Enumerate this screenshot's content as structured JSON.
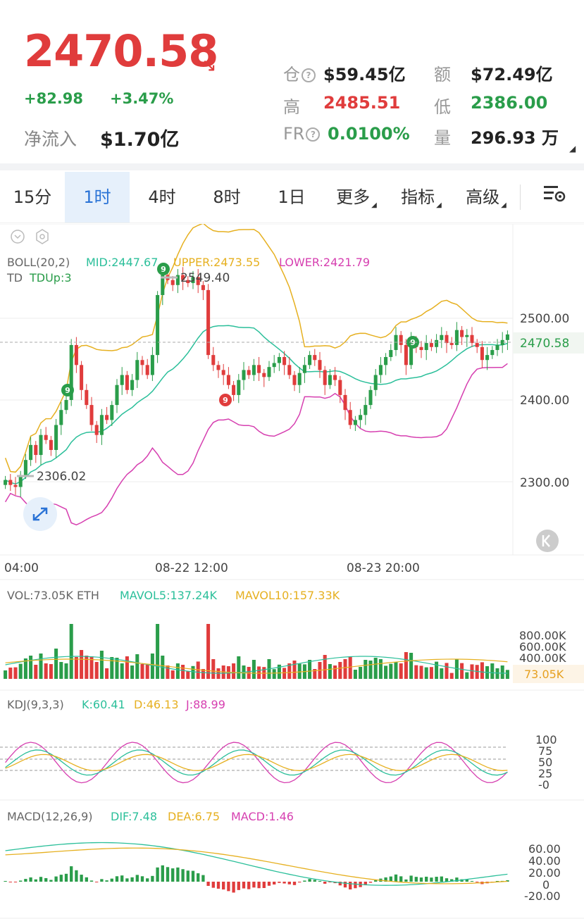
{
  "header": {
    "price": "2470.58",
    "change_abs": "+82.98",
    "change_pct": "+3.47%",
    "netflow_label": "净流入",
    "netflow_value": "$1.70亿",
    "stats": {
      "position_label": "仓",
      "position_value": "$59.45亿",
      "amount_label": "额",
      "amount_value": "$72.49亿",
      "high_label": "高",
      "high_value": "2485.51",
      "low_label": "低",
      "low_value": "2386.00",
      "fr_label": "FR",
      "fr_value": "0.0100%",
      "volume_label": "量",
      "volume_value": "296.93 万"
    }
  },
  "tabs": [
    {
      "label": "15分",
      "active": false
    },
    {
      "label": "1时",
      "active": true
    },
    {
      "label": "4时",
      "active": false
    },
    {
      "label": "8时",
      "active": false
    },
    {
      "label": "1日",
      "active": false
    },
    {
      "label": "更多",
      "active": false,
      "dropdown": true
    },
    {
      "label": "指标",
      "active": false,
      "dropdown": true
    },
    {
      "label": "高级",
      "active": false,
      "dropdown": true
    }
  ],
  "colors": {
    "up": "#2a9d4a",
    "down": "#e03c3c",
    "mid": "#2bbf9a",
    "upper": "#e6b020",
    "lower": "#d63fb0",
    "accent": "#2a73d6"
  },
  "main_chart": {
    "boll_label": "BOLL(20,2)",
    "mid_label": "MID:2447.67",
    "upper_label": "UPPER:2473.55",
    "lower_label": "LOWER:2421.79",
    "td_label": "TD",
    "td_value": "TDUp:3",
    "max_label": "2549.40",
    "min_label": "2306.02",
    "current_price_tag": "2470.58",
    "y_ticks": [
      "2500.00",
      "2400.00",
      "2300.00"
    ],
    "x_ticks": [
      "04:00",
      "08-22 12:00",
      "08-23 20:00"
    ],
    "td_markers": [
      "9",
      "9",
      "9",
      "9"
    ]
  },
  "vol_panel": {
    "vol_label": "VOL:73.05K ETH",
    "mavol5_label": "MAVOL5:137.24K",
    "mavol10_label": "MAVOL10:157.33K",
    "y_ticks": [
      "800.00K",
      "600.00K",
      "400.00K"
    ],
    "current_tag": "73.05K"
  },
  "kdj_panel": {
    "label": "KDJ(9,3,3)",
    "k_label": "K:60.41",
    "d_label": "D:46.13",
    "j_label": "J:88.99",
    "y_ticks": [
      "100",
      "75",
      "50",
      "25",
      "-0"
    ]
  },
  "macd_panel": {
    "label": "MACD(12,26,9)",
    "dif_label": "DIF:7.48",
    "dea_label": "DEA:6.75",
    "macd_label": "MACD:1.46",
    "y_ticks": [
      "60.00",
      "40.00",
      "20.00",
      "0",
      "-20.00"
    ]
  },
  "chart_data": {
    "type": "candlestick",
    "y_range": [
      2250,
      2560
    ],
    "closes": [
      2325,
      2320,
      2318,
      2330,
      2345,
      2360,
      2350,
      2370,
      2365,
      2355,
      2380,
      2395,
      2405,
      2460,
      2440,
      2415,
      2400,
      2380,
      2370,
      2390,
      2385,
      2400,
      2420,
      2430,
      2415,
      2425,
      2445,
      2440,
      2430,
      2450,
      2510,
      2530,
      2525,
      2520,
      2530,
      2525,
      2522,
      2528,
      2520,
      2515,
      2450,
      2440,
      2435,
      2430,
      2420,
      2410,
      2425,
      2435,
      2430,
      2440,
      2432,
      2428,
      2438,
      2442,
      2448,
      2440,
      2430,
      2420,
      2432,
      2440,
      2450,
      2445,
      2435,
      2420,
      2430,
      2425,
      2410,
      2395,
      2380,
      2385,
      2390,
      2400,
      2415,
      2430,
      2440,
      2448,
      2455,
      2470,
      2460,
      2440,
      2465,
      2458,
      2455,
      2462,
      2458,
      2465,
      2470,
      2462,
      2460,
      2475,
      2468,
      2470,
      2462,
      2458,
      2445,
      2450,
      2455,
      2460,
      2465,
      2470.58
    ]
  }
}
